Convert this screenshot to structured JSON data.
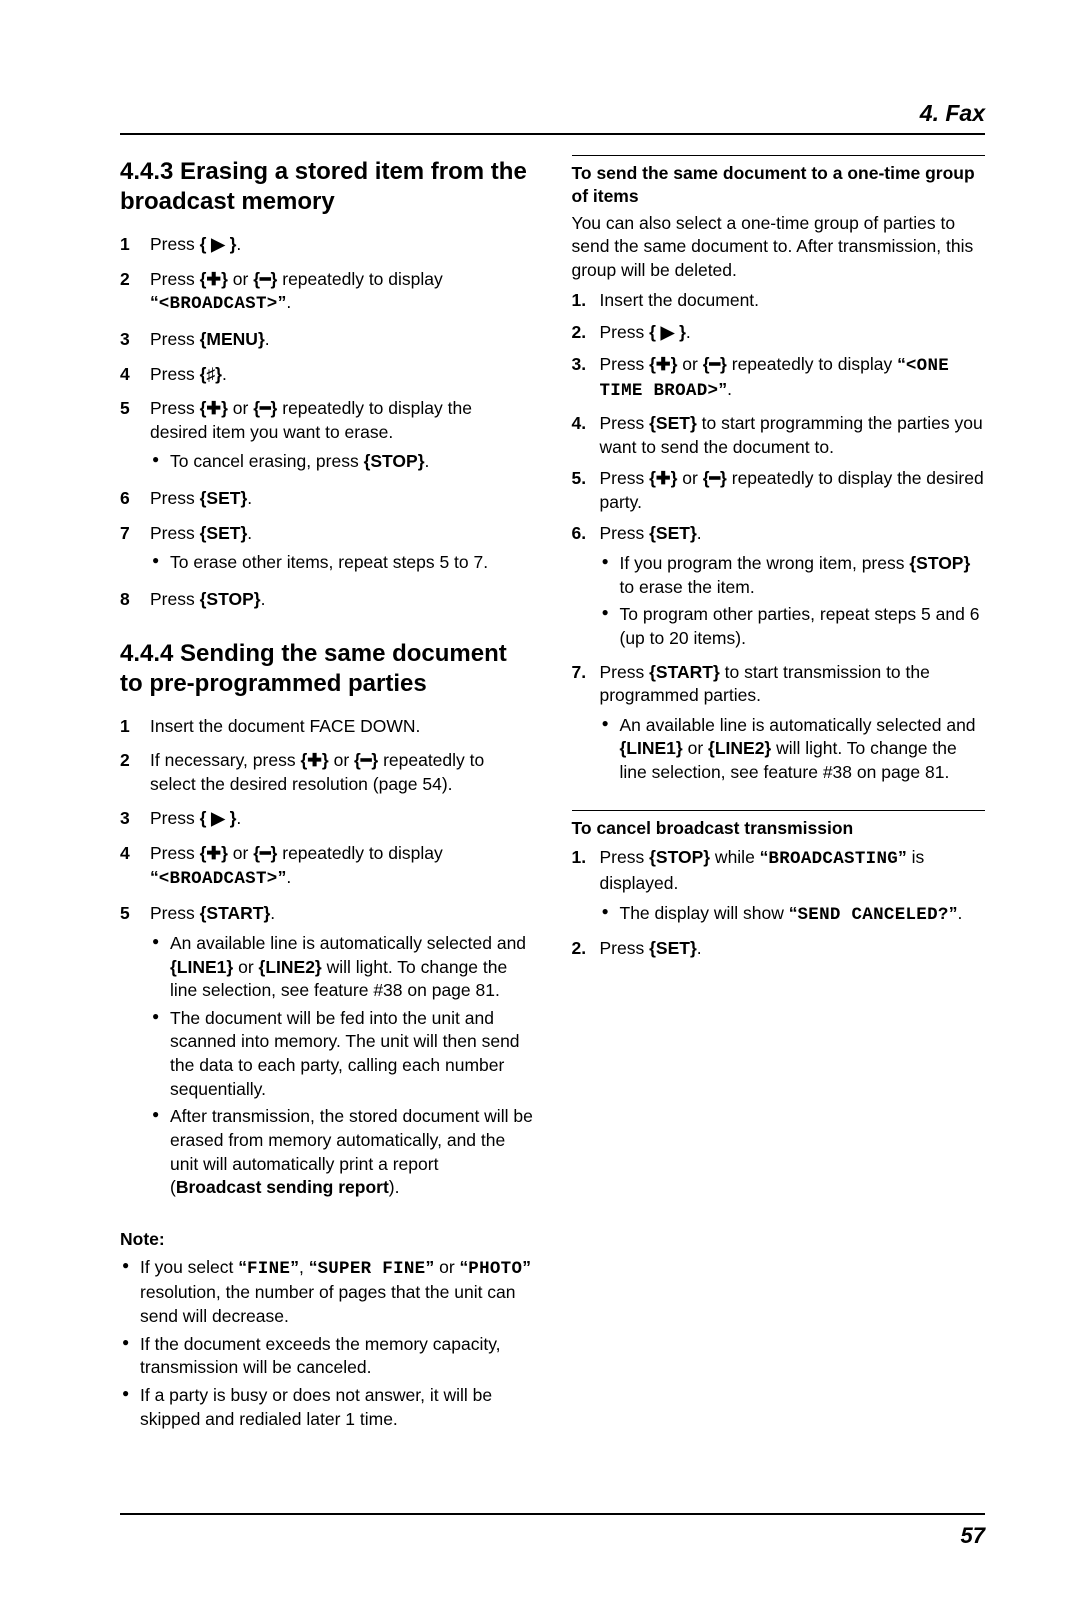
{
  "page": {
    "header": "4. Fax",
    "footer": "57"
  },
  "left": {
    "section443": {
      "title": "4.4.3 Erasing a stored item from the broadcast memory",
      "steps": [
        {
          "n": "1",
          "html": "Press <b>{ ▶ }</b>."
        },
        {
          "n": "2",
          "html": "Press <b>{✚}</b> or <b>{━}</b> repeatedly to display <b>“</b><span class='mono'>&lt;BROADCAST&gt;</span><b>”</b>."
        },
        {
          "n": "3",
          "html": "Press <b>{MENU}</b>."
        },
        {
          "n": "4",
          "html": "Press <b>{♯}</b>."
        },
        {
          "n": "5",
          "html": "Press <b>{✚}</b> or <b>{━}</b> repeatedly to display the desired item you want to erase.",
          "bullets": [
            "To cancel erasing, press <b>{STOP}</b>."
          ]
        },
        {
          "n": "6",
          "html": "Press <b>{SET}</b>."
        },
        {
          "n": "7",
          "html": "Press <b>{SET}</b>.",
          "bullets": [
            "To erase other items, repeat steps 5 to 7."
          ]
        },
        {
          "n": "8",
          "html": "Press <b>{STOP}</b>."
        }
      ]
    },
    "section444": {
      "title": "4.4.4 Sending the same document to pre-programmed parties",
      "steps": [
        {
          "n": "1",
          "html": "Insert the document FACE DOWN."
        },
        {
          "n": "2",
          "html": "If necessary, press <b>{✚}</b> or <b>{━}</b> repeatedly to select the desired resolution (page 54)."
        },
        {
          "n": "3",
          "html": "Press <b>{ ▶ }</b>."
        },
        {
          "n": "4",
          "html": "Press <b>{✚}</b> or <b>{━}</b> repeatedly to display <b>“</b><span class='mono'>&lt;BROADCAST&gt;</span><b>”</b>."
        },
        {
          "n": "5",
          "html": "Press <b>{START}</b>.",
          "bullets": [
            "An available line is automatically selected and <b>{LINE1}</b> or <b>{LINE2}</b> will light. To change the line selection, see feature #38 on page 81.",
            "The document will be fed into the unit and scanned into memory. The unit will then send the data to each party, calling each number sequentially.",
            "After transmission, the stored document will be erased from memory automatically, and the unit will automatically print a report (<b>Broadcast sending report</b>)."
          ]
        }
      ],
      "noteLabel": "Note:",
      "notes": [
        "If you select <b>“</b><span class='mono'>FINE</span><b>”</b>, <b>“</b><span class='mono'>SUPER FINE</span><b>”</b> or <b>“</b><span class='mono'>PHOTO</span><b>”</b> resolution, the number of pages that the unit can send will decrease.",
        "If the document exceeds the memory capacity, transmission will be canceled.",
        "If a party is busy or does not answer, it will be skipped and redialed later 1 time."
      ]
    }
  },
  "right": {
    "onetime": {
      "heading": "To send the same document to a one-time group of items",
      "intro": "You can also select a one-time group of parties to send the same document to. After transmission, this group will be deleted.",
      "steps": [
        {
          "n": "1.",
          "html": "Insert the document."
        },
        {
          "n": "2.",
          "html": "Press <b>{ ▶ }</b>."
        },
        {
          "n": "3.",
          "html": "Press <b>{✚}</b> or <b>{━}</b> repeatedly to display <b>“</b><span class='mono'>&lt;ONE TIME BROAD&gt;</span><b>”</b>."
        },
        {
          "n": "4.",
          "html": "Press <b>{SET}</b> to start programming the parties you want to send the document to."
        },
        {
          "n": "5.",
          "html": "Press <b>{✚}</b> or <b>{━}</b> repeatedly to display the desired party."
        },
        {
          "n": "6.",
          "html": "Press <b>{SET}</b>.",
          "bullets": [
            "If you program the wrong item, press <b>{STOP}</b> to erase the item.",
            "To program other parties, repeat steps 5 and 6 (up to 20 items)."
          ]
        },
        {
          "n": "7.",
          "html": "Press <b>{START}</b> to start transmission to the programmed parties.",
          "bullets": [
            "An available line is automatically selected and <b>{LINE1}</b> or <b>{LINE2}</b> will light. To change the line selection, see feature #38 on page 81."
          ]
        }
      ]
    },
    "cancel": {
      "heading": "To cancel broadcast transmission",
      "steps": [
        {
          "n": "1.",
          "html": "Press <b>{STOP}</b> while <b>“</b><span class='mono'>BROADCASTING</span><b>”</b> is displayed.",
          "bullets": [
            "The display will show <b>“</b><span class='mono'>SEND CANCELED?</span><b>”</b>."
          ]
        },
        {
          "n": "2.",
          "html": "Press <b>{SET}</b>."
        }
      ]
    }
  }
}
